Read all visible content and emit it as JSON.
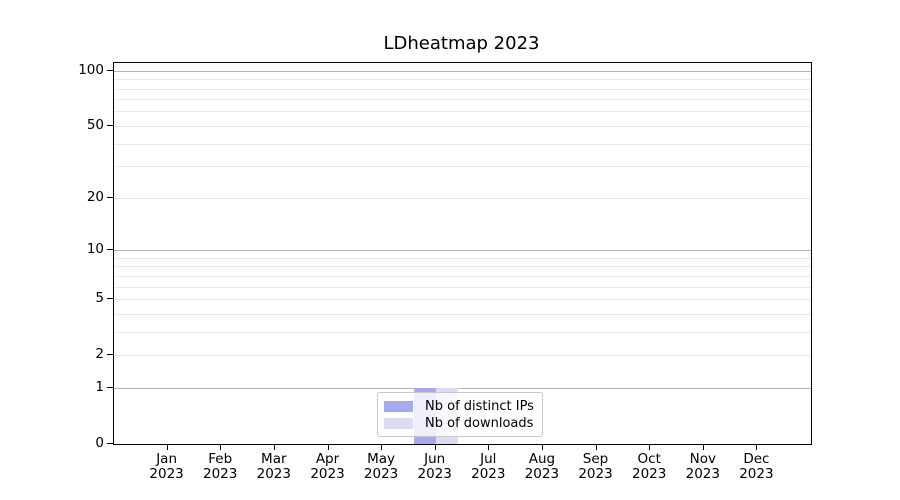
{
  "chart_data": {
    "type": "bar",
    "title": "LDheatmap 2023",
    "x_tick_labels": [
      {
        "month": "Jan",
        "year": "2023"
      },
      {
        "month": "Feb",
        "year": "2023"
      },
      {
        "month": "Mar",
        "year": "2023"
      },
      {
        "month": "Apr",
        "year": "2023"
      },
      {
        "month": "May",
        "year": "2023"
      },
      {
        "month": "Jun",
        "year": "2023"
      },
      {
        "month": "Jul",
        "year": "2023"
      },
      {
        "month": "Aug",
        "year": "2023"
      },
      {
        "month": "Sep",
        "year": "2023"
      },
      {
        "month": "Oct",
        "year": "2023"
      },
      {
        "month": "Nov",
        "year": "2023"
      },
      {
        "month": "Dec",
        "year": "2023"
      }
    ],
    "series": [
      {
        "name": "Nb of distinct IPs",
        "color": "#a9a9f1",
        "values": [
          0,
          0,
          0,
          0,
          0,
          1,
          0,
          0,
          0,
          0,
          0,
          0
        ]
      },
      {
        "name": "Nb of downloads",
        "color": "#dcdcf6",
        "values": [
          0,
          0,
          0,
          0,
          0,
          1,
          0,
          0,
          0,
          0,
          0,
          0
        ]
      }
    ],
    "y_axis": {
      "scale": "log1p",
      "ticks": [
        100,
        50,
        20,
        10,
        5,
        2,
        1,
        0
      ],
      "max": 110,
      "major_gridlines": [
        1,
        10,
        100
      ],
      "minor_gridlines": [
        2,
        3,
        4,
        5,
        6,
        7,
        8,
        9,
        20,
        30,
        40,
        50,
        60,
        70,
        80,
        90
      ]
    },
    "xlabel": "",
    "ylabel": "",
    "legend_position": "bottom-center",
    "grid": "on",
    "colors": {
      "grid_major": "#b3b3b3",
      "grid_minor": "#e9e9e9",
      "axis": "#000000",
      "legend_border": "#c9c9c9"
    }
  }
}
